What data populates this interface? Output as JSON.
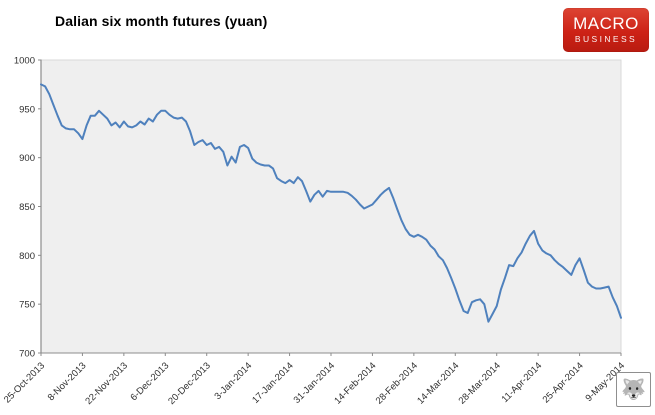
{
  "header": {
    "title": "Dalian six month futures (yuan)",
    "logo": {
      "macro": "MACRO",
      "business": "BUSINESS",
      "bg_color": "#cd2216",
      "text_color": "#ffffff"
    }
  },
  "watermark": {
    "glyph": "🐺"
  },
  "chart_data": {
    "type": "line",
    "title": "Dalian six month futures (yuan)",
    "xlabel": "",
    "ylabel": "",
    "ylim": [
      700,
      1000
    ],
    "y_ticks": [
      700,
      750,
      800,
      850,
      900,
      950,
      1000
    ],
    "grid": false,
    "legend": "none",
    "plot_bg": "#efefef",
    "plot_border": "#d9d9d9",
    "axis_color": "#8c8c8c",
    "label_rotation": -45,
    "x_tick_interval": 10,
    "x_tick_labels": [
      "25-Oct-2013",
      "8-Nov-2013",
      "22-Nov-2013",
      "6-Dec-2013",
      "20-Dec-2013",
      "3-Jan-2014",
      "17-Jan-2014",
      "31-Jan-2014",
      "14-Feb-2014",
      "28-Feb-2014",
      "14-Mar-2014",
      "28-Mar-2014",
      "11-Apr-2014",
      "25-Apr-2014",
      "9-May-2014"
    ],
    "x_frequency": "weekdays",
    "series": [
      {
        "name": "Dalian six month futures (yuan)",
        "color": "#4f81bd",
        "values": [
          975,
          973,
          965,
          954,
          943,
          933,
          930,
          929,
          929,
          925,
          919,
          933,
          943,
          943,
          948,
          944,
          940,
          933,
          936,
          931,
          937,
          932,
          931,
          933,
          937,
          934,
          940,
          937,
          944,
          948,
          948,
          944,
          941,
          940,
          941,
          937,
          927,
          913,
          916,
          918,
          913,
          915,
          909,
          911,
          906,
          892,
          901,
          895,
          911,
          913,
          910,
          899,
          895,
          893,
          892,
          892,
          889,
          879,
          876,
          874,
          877,
          874,
          880,
          876,
          866,
          855,
          862,
          866,
          860,
          866,
          865,
          865,
          865,
          865,
          864,
          861,
          857,
          852,
          848,
          850,
          852,
          857,
          862,
          866,
          869,
          859,
          847,
          836,
          827,
          821,
          819,
          821,
          819,
          816,
          810,
          806,
          799,
          795,
          787,
          777,
          766,
          754,
          743,
          741,
          752,
          754,
          755,
          750,
          732,
          740,
          748,
          765,
          777,
          790,
          789,
          797,
          803,
          812,
          820,
          825,
          812,
          805,
          802,
          800,
          795,
          791,
          788,
          784,
          780,
          790,
          797,
          785,
          772,
          768,
          766,
          766,
          767,
          768,
          757,
          748,
          736
        ]
      }
    ]
  }
}
